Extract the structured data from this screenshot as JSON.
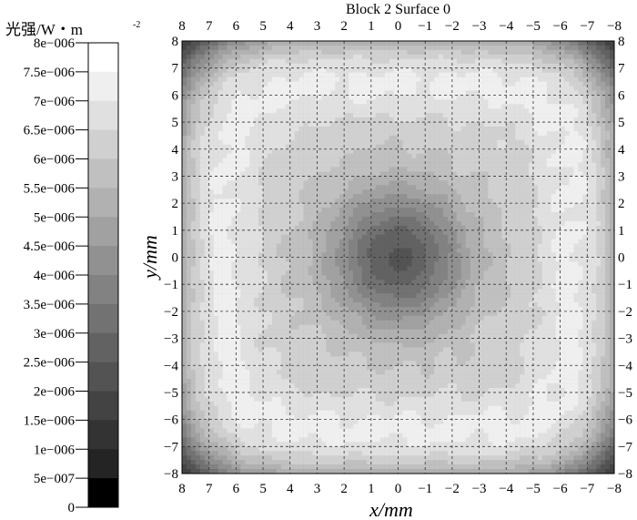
{
  "chart_data": {
    "type": "heatmap",
    "title": "Block 2 Surface 0",
    "xlabel": "x/mm",
    "ylabel": "y/mm",
    "x_ticks": [
      "8",
      "7",
      "6",
      "5",
      "4",
      "3",
      "2",
      "1",
      "0",
      "−1",
      "−2",
      "−3",
      "−4",
      "−5",
      "−6",
      "−7",
      "−8"
    ],
    "y_ticks": [
      "8",
      "7",
      "6",
      "5",
      "4",
      "3",
      "2",
      "1",
      "0",
      "−1",
      "−2",
      "−3",
      "−4",
      "−5",
      "−6",
      "−7",
      "−8"
    ],
    "xlim": [
      8,
      -8
    ],
    "ylim": [
      -8,
      8
    ],
    "grid": true,
    "colorbar": {
      "title": "光强/W・m",
      "title_superscript": "-2",
      "labels": [
        "8e−006",
        "7.5e−006",
        "7e−006",
        "6.5e−006",
        "6e−006",
        "5.5e−006",
        "5e−006",
        "4.5e−006",
        "4e−006",
        "3.5e−006",
        "3e−006",
        "2.5e−006",
        "2e−006",
        "1.5e−006",
        "1e−006",
        "5e−007",
        "0"
      ],
      "levels": [
        8e-06,
        7.5e-06,
        7e-06,
        6.5e-06,
        6e-06,
        5.5e-06,
        5e-06,
        4.5e-06,
        4e-06,
        3.5e-06,
        3e-06,
        2.5e-06,
        2e-06,
        1.5e-06,
        1e-06,
        5e-07,
        0
      ]
    },
    "field": {
      "plateau_value": 6.3e-06,
      "edge_radius_mm": 8.6,
      "edge_exponent": 5,
      "center_dip_radius_mm": 2.6
    },
    "colors": {
      "background": "#000000",
      "grid": "#333333"
    }
  }
}
